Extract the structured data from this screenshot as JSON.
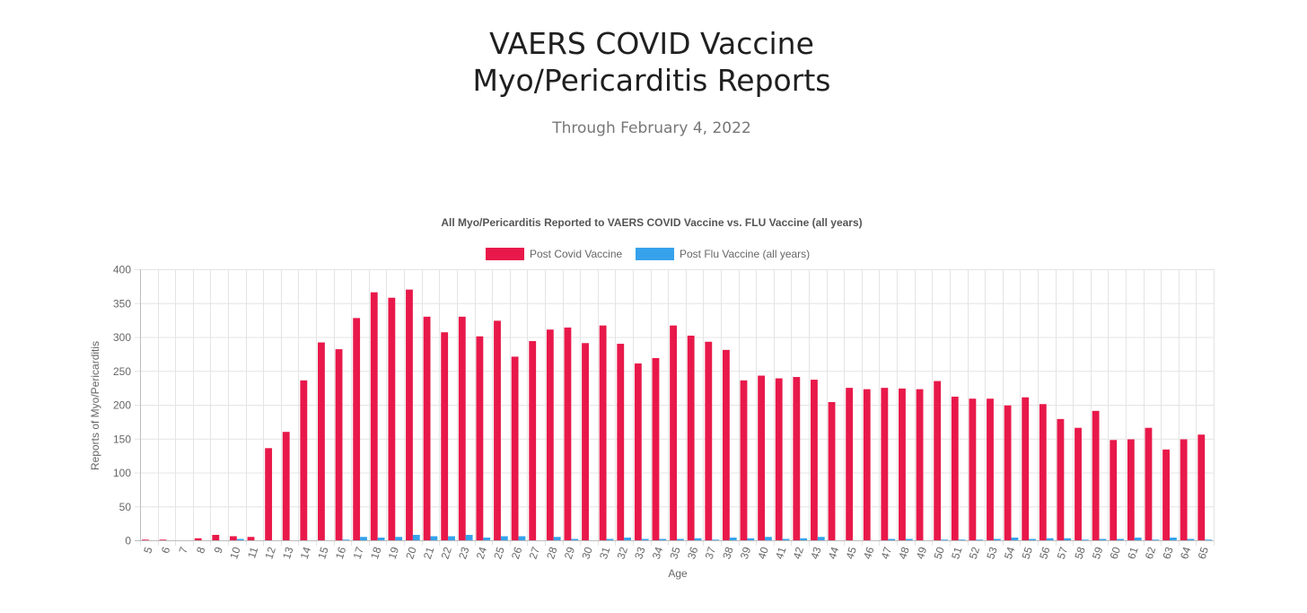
{
  "header": {
    "title_line1": "VAERS COVID Vaccine",
    "title_line2": "Myo/Pericarditis Reports",
    "subtitle": "Through February 4, 2022"
  },
  "chart_data": {
    "type": "bar",
    "title": "All Myo/Pericarditis Reported to VAERS COVID Vaccine vs. FLU Vaccine (all years)",
    "xlabel": "Age",
    "ylabel": "Reports of Myo/Pericarditis",
    "ylim": [
      0,
      400
    ],
    "yticks": [
      0,
      50,
      100,
      150,
      200,
      250,
      300,
      350,
      400
    ],
    "grid": true,
    "legend_position": "top-center",
    "categories": [
      "5",
      "6",
      "7",
      "8",
      "9",
      "10",
      "11",
      "12",
      "13",
      "14",
      "15",
      "16",
      "17",
      "18",
      "19",
      "20",
      "21",
      "22",
      "23",
      "24",
      "25",
      "26",
      "27",
      "28",
      "29",
      "30",
      "31",
      "32",
      "33",
      "34",
      "35",
      "36",
      "37",
      "38",
      "39",
      "40",
      "41",
      "42",
      "43",
      "44",
      "45",
      "46",
      "47",
      "48",
      "49",
      "50",
      "51",
      "52",
      "53",
      "54",
      "55",
      "56",
      "57",
      "58",
      "59",
      "60",
      "61",
      "62",
      "63",
      "64",
      "65"
    ],
    "series": [
      {
        "name": "Post Covid Vaccine",
        "color": "#E8194A",
        "values": [
          1,
          1,
          0,
          3,
          8,
          6,
          5,
          136,
          160,
          236,
          292,
          282,
          328,
          366,
          358,
          370,
          330,
          307,
          330,
          301,
          324,
          271,
          294,
          311,
          314,
          291,
          317,
          290,
          261,
          269,
          317,
          302,
          293,
          281,
          236,
          243,
          239,
          241,
          237,
          204,
          225,
          223,
          225,
          224,
          223,
          235,
          212,
          209,
          209,
          199,
          211,
          201,
          179,
          166,
          191,
          148,
          149,
          166,
          134,
          149,
          156
        ]
      },
      {
        "name": "Post Flu Vaccine (all years)",
        "color": "#36A2EB",
        "values": [
          0,
          0,
          0,
          0,
          0,
          2,
          0,
          0,
          0,
          0,
          0,
          1,
          5,
          4,
          5,
          8,
          6,
          6,
          8,
          4,
          6,
          6,
          0,
          5,
          2,
          0,
          2,
          4,
          2,
          2,
          2,
          3,
          1,
          4,
          3,
          5,
          2,
          3,
          5,
          0,
          0,
          0,
          2,
          2,
          0,
          1,
          1,
          1,
          2,
          4,
          2,
          3,
          3,
          1,
          2,
          2,
          4,
          1,
          4,
          2,
          1
        ]
      }
    ]
  }
}
